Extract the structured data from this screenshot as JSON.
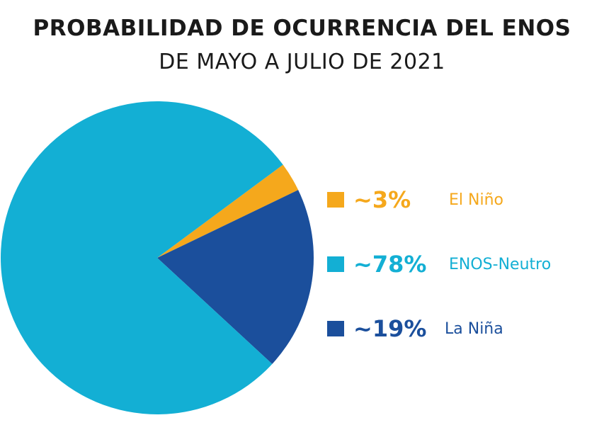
{
  "title": "PROBABILIDAD DE OCURRENCIA DEL ENOS",
  "subtitle": "DE MAYO A JULIO DE  2021",
  "colors": {
    "el_nino": "#f5a81c",
    "neutro": "#13afd4",
    "la_nina": "#1b4f9c"
  },
  "chart_data": {
    "type": "pie",
    "title": "PROBABILIDAD DE OCURRENCIA DEL ENOS",
    "subtitle": "DE MAYO A JULIO DE  2021",
    "slices": [
      {
        "name": "El Niño",
        "label": "~3%",
        "value": 3,
        "color": "#f5a81c"
      },
      {
        "name": "ENOS-Neutro",
        "label": "~78%",
        "value": 78,
        "color": "#13afd4"
      },
      {
        "name": "La Niña",
        "label": "~19%",
        "value": 19,
        "color": "#1b4f9c"
      }
    ],
    "legend_position": "right"
  }
}
